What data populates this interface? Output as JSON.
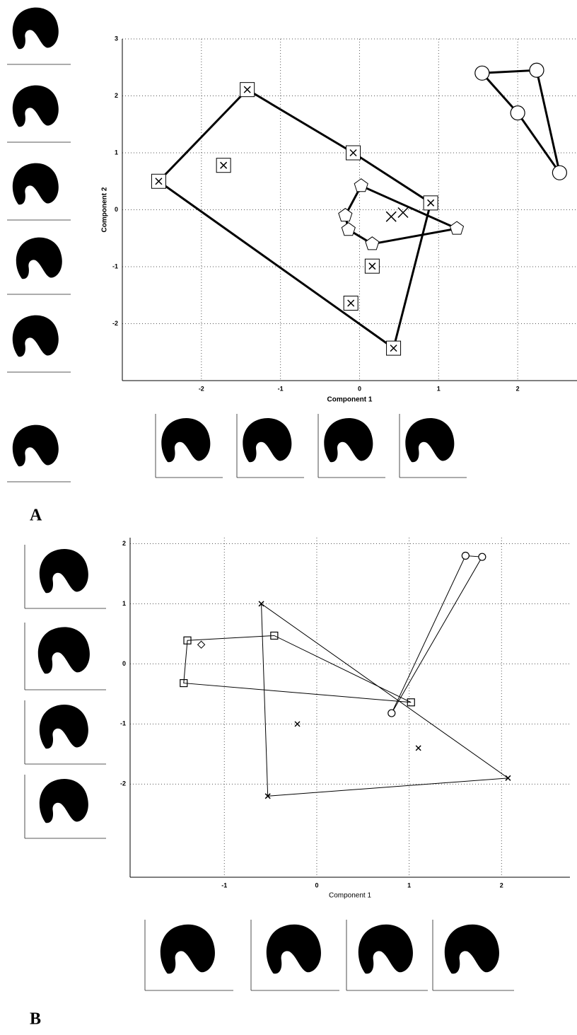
{
  "panel_labels": [
    "A",
    "B"
  ],
  "chart_data": [
    {
      "type": "scatter",
      "x_label": "Component 1",
      "y_label": "Component 2",
      "xlim": [
        -3,
        2.75
      ],
      "ylim": [
        -3,
        3
      ],
      "xticks": [
        -2,
        -1,
        0,
        1,
        2
      ],
      "yticks": [
        -2,
        -1,
        0,
        1,
        2,
        3
      ],
      "grid": true,
      "series": [
        {
          "marker": "square-x",
          "color": "#000000",
          "closed": true,
          "x": [
            -2.54,
            -1.42,
            -0.08,
            0.9,
            0.43
          ],
          "values": [
            0.5,
            2.11,
            1.0,
            0.12,
            -2.43
          ]
        },
        {
          "marker": "square-x",
          "color": "#000000",
          "closed": false,
          "x": [
            -1.72,
            0.16,
            -0.11
          ],
          "values": [
            0.78,
            -0.99,
            -1.64
          ]
        },
        {
          "marker": "pentagon",
          "color": "#000000",
          "closed": true,
          "x": [
            0.02,
            1.23,
            0.16,
            -0.14,
            -0.18
          ],
          "values": [
            0.42,
            -0.33,
            -0.6,
            -0.35,
            -0.1
          ]
        },
        {
          "marker": "x",
          "color": "#000000",
          "closed": false,
          "x": [
            0.4,
            0.55
          ],
          "values": [
            -0.12,
            -0.05
          ]
        },
        {
          "marker": "circle",
          "color": "#000000",
          "closed": true,
          "x": [
            1.55,
            2.24,
            2.53,
            2.0
          ],
          "values": [
            2.4,
            2.45,
            0.65,
            1.7
          ]
        }
      ]
    },
    {
      "type": "scatter",
      "x_label": "Component 1",
      "xlim": [
        -2.02,
        2.74
      ],
      "ylim": [
        -3.55,
        2.1
      ],
      "xticks": [
        -1,
        0,
        1,
        2
      ],
      "yticks": [
        -2,
        -1,
        0,
        1,
        2
      ],
      "grid": true,
      "series": [
        {
          "marker": "x",
          "color": "#000000",
          "closed": true,
          "x": [
            -0.6,
            2.07,
            -0.53
          ],
          "values": [
            1.0,
            -1.9,
            -2.2
          ]
        },
        {
          "marker": "x",
          "color": "#000000",
          "closed": false,
          "x": [
            -0.21,
            1.1
          ],
          "values": [
            -1.0,
            -1.4
          ]
        },
        {
          "marker": "square",
          "color": "#000000",
          "closed": true,
          "x": [
            -1.4,
            -0.46,
            1.02,
            -1.44
          ],
          "values": [
            0.39,
            0.47,
            -0.64,
            -0.32
          ]
        },
        {
          "marker": "diamond",
          "color": "#000000",
          "closed": false,
          "x": [
            -1.25
          ],
          "values": [
            0.32
          ]
        },
        {
          "marker": "circle",
          "color": "#000000",
          "closed": true,
          "x": [
            0.81,
            1.61,
            1.79
          ],
          "values": [
            -0.82,
            1.8,
            1.78
          ]
        }
      ]
    }
  ]
}
